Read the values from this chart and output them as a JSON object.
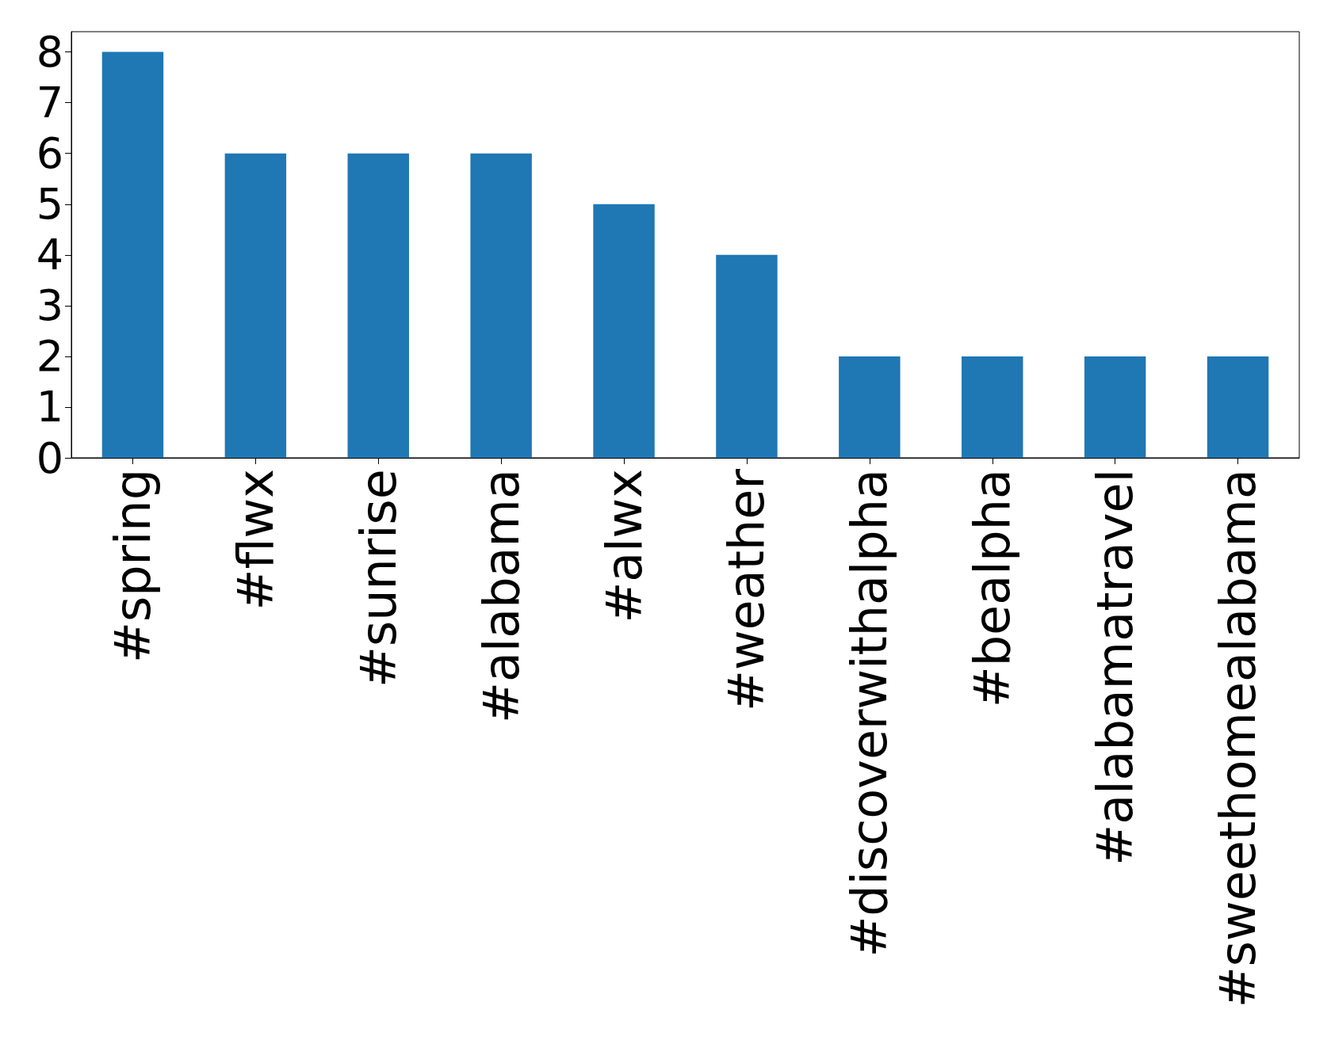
{
  "chart_data": {
    "type": "bar",
    "categories": [
      "#spring",
      "#flwx",
      "#sunrise",
      "#alabama",
      "#alwx",
      "#weather",
      "#discoverwithalpha",
      "#bealpha",
      "#alabamatravel",
      "#sweethomealabama"
    ],
    "values": [
      8,
      6,
      6,
      6,
      5,
      4,
      2,
      2,
      2,
      2
    ],
    "color": "#1f77b4",
    "ylim": [
      0,
      8.4
    ],
    "yticks": [
      0,
      1,
      2,
      3,
      4,
      5,
      6,
      7,
      8
    ],
    "grid": false
  }
}
